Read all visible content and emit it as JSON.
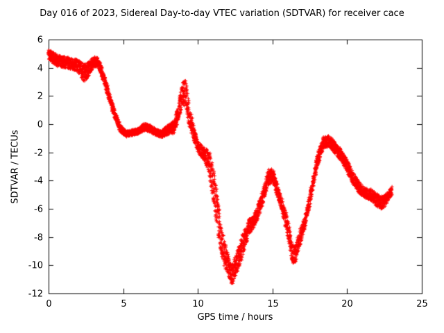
{
  "chart_data": {
    "type": "scatter",
    "title": "Day 016 of 2023, Sidereal Day-to-day VTEC variation (SDTVAR) for receiver cace",
    "xlabel": "GPS time / hours",
    "ylabel": "SDTVAR / TECUs",
    "xlim": [
      0,
      25
    ],
    "ylim": [
      -12,
      6
    ],
    "xticks": [
      0,
      5,
      10,
      15,
      20,
      25
    ],
    "yticks": [
      -12,
      -10,
      -8,
      -6,
      -4,
      -2,
      0,
      2,
      4,
      6
    ],
    "grid": false,
    "legend": "none",
    "background": "#ffffff",
    "axis_color": "#000000",
    "series": [
      {
        "name": "SDTVAR",
        "color": "#ff0000",
        "marker": "plus",
        "points": [
          [
            0.0,
            5.0,
            0.7
          ],
          [
            0.3,
            4.7,
            0.8
          ],
          [
            0.6,
            4.5,
            0.8
          ],
          [
            1.0,
            4.4,
            0.8
          ],
          [
            1.5,
            4.3,
            0.8
          ],
          [
            2.0,
            4.1,
            0.9
          ],
          [
            2.4,
            3.6,
            1.3
          ],
          [
            2.7,
            3.9,
            1.0
          ],
          [
            3.0,
            4.4,
            0.8
          ],
          [
            3.3,
            4.4,
            0.6
          ],
          [
            3.6,
            3.6,
            0.7
          ],
          [
            4.0,
            2.2,
            0.7
          ],
          [
            4.4,
            0.8,
            0.6
          ],
          [
            4.8,
            -0.3,
            0.5
          ],
          [
            5.2,
            -0.7,
            0.4
          ],
          [
            5.6,
            -0.6,
            0.4
          ],
          [
            6.0,
            -0.5,
            0.4
          ],
          [
            6.4,
            -0.2,
            0.5
          ],
          [
            6.8,
            -0.3,
            0.5
          ],
          [
            7.2,
            -0.6,
            0.5
          ],
          [
            7.6,
            -0.7,
            0.5
          ],
          [
            8.0,
            -0.4,
            0.7
          ],
          [
            8.4,
            -0.2,
            0.9
          ],
          [
            8.7,
            0.8,
            1.3
          ],
          [
            9.0,
            2.2,
            1.7
          ],
          [
            9.2,
            2.0,
            2.2
          ],
          [
            9.4,
            0.8,
            1.8
          ],
          [
            9.7,
            -0.5,
            1.1
          ],
          [
            10.0,
            -1.6,
            0.8
          ],
          [
            10.4,
            -2.1,
            0.9
          ],
          [
            10.8,
            -2.8,
            1.8
          ],
          [
            11.0,
            -4.2,
            2.4
          ],
          [
            11.3,
            -6.0,
            2.6
          ],
          [
            11.6,
            -8.5,
            2.1
          ],
          [
            12.0,
            -10.0,
            1.6
          ],
          [
            12.3,
            -10.7,
            1.3
          ],
          [
            12.6,
            -9.8,
            1.6
          ],
          [
            13.0,
            -8.6,
            1.6
          ],
          [
            13.4,
            -7.3,
            1.1
          ],
          [
            13.7,
            -7.0,
            0.9
          ],
          [
            14.0,
            -6.3,
            0.9
          ],
          [
            14.4,
            -5.0,
            1.0
          ],
          [
            14.7,
            -3.8,
            1.1
          ],
          [
            15.0,
            -3.6,
            1.0
          ],
          [
            15.3,
            -4.6,
            0.9
          ],
          [
            15.6,
            -5.6,
            0.9
          ],
          [
            16.0,
            -7.3,
            1.3
          ],
          [
            16.3,
            -9.0,
            1.5
          ],
          [
            16.5,
            -9.3,
            1.3
          ],
          [
            16.8,
            -8.2,
            1.1
          ],
          [
            17.2,
            -6.8,
            0.9
          ],
          [
            17.6,
            -4.8,
            0.9
          ],
          [
            18.0,
            -2.6,
            0.9
          ],
          [
            18.4,
            -1.3,
            0.8
          ],
          [
            18.8,
            -1.2,
            0.8
          ],
          [
            19.2,
            -1.7,
            0.8
          ],
          [
            19.6,
            -2.2,
            0.8
          ],
          [
            20.0,
            -3.0,
            0.9
          ],
          [
            20.4,
            -3.8,
            0.9
          ],
          [
            20.8,
            -4.5,
            0.8
          ],
          [
            21.2,
            -4.9,
            0.7
          ],
          [
            21.6,
            -5.0,
            0.8
          ],
          [
            22.0,
            -5.4,
            0.9
          ],
          [
            22.4,
            -5.6,
            0.9
          ],
          [
            22.7,
            -5.2,
            0.7
          ],
          [
            23.0,
            -4.7,
            0.6
          ]
        ]
      }
    ]
  }
}
